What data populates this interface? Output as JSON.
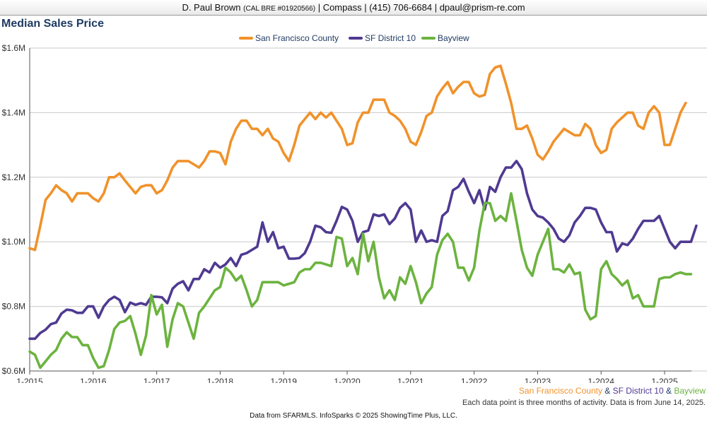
{
  "header": {
    "agent_name": "D. Paul Brown",
    "license": "(CAL BRE #01920566)",
    "rest": "| Compass | (415) 706-6684 | dpaul@prism-re.com"
  },
  "footer": {
    "attribution": {
      "sf": "San Francisco County",
      "amp1": " & ",
      "d10": "SF District 10",
      "amp2": " & ",
      "bay": "Bayview"
    },
    "note": "Each data point is three months of activity. Data is from June 14, 2025.",
    "source": "Data from SFARMLS. InfoSparks © 2025 ShowingTime Plus, LLC."
  },
  "chart_data": {
    "type": "line",
    "title": "Median Sales Price",
    "xlabel": "",
    "ylabel": "",
    "ylim": [
      600000,
      1600000
    ],
    "yticks": [
      600000,
      800000,
      1000000,
      1200000,
      1400000,
      1600000
    ],
    "ytick_labels": [
      "$0.6M",
      "$0.8M",
      "$1.0M",
      "$1.2M",
      "$1.4M",
      "$1.6M"
    ],
    "xticks": [
      "1-2015",
      "1-2016",
      "1-2017",
      "1-2018",
      "1-2019",
      "1-2020",
      "1-2021",
      "1-2022",
      "1-2023",
      "1-2024",
      "1-2025"
    ],
    "x_start": "2015-01",
    "grid": "horizontal",
    "legend_position": "top",
    "series": [
      {
        "name": "San Francisco County",
        "color": "#f0922b",
        "values": [
          980000,
          975000,
          1050000,
          1130000,
          1150000,
          1175000,
          1160000,
          1150000,
          1125000,
          1150000,
          1150000,
          1150000,
          1135000,
          1125000,
          1150000,
          1200000,
          1200000,
          1212000,
          1190000,
          1170000,
          1150000,
          1170000,
          1175000,
          1175000,
          1150000,
          1160000,
          1190000,
          1230000,
          1250000,
          1250000,
          1250000,
          1240000,
          1230000,
          1250000,
          1280000,
          1280000,
          1275000,
          1240000,
          1310000,
          1350000,
          1375000,
          1375000,
          1350000,
          1350000,
          1330000,
          1350000,
          1320000,
          1310000,
          1275000,
          1250000,
          1300000,
          1360000,
          1380000,
          1400000,
          1380000,
          1400000,
          1385000,
          1400000,
          1375000,
          1350000,
          1300000,
          1305000,
          1370000,
          1400000,
          1400000,
          1440000,
          1440000,
          1440000,
          1400000,
          1390000,
          1375000,
          1350000,
          1310000,
          1300000,
          1340000,
          1390000,
          1400000,
          1450000,
          1475000,
          1495000,
          1460000,
          1480000,
          1495000,
          1495000,
          1460000,
          1450000,
          1455000,
          1520000,
          1540000,
          1545000,
          1490000,
          1430000,
          1350000,
          1350000,
          1360000,
          1320000,
          1270000,
          1255000,
          1280000,
          1310000,
          1330000,
          1350000,
          1340000,
          1330000,
          1330000,
          1365000,
          1350000,
          1300000,
          1275000,
          1285000,
          1350000,
          1370000,
          1385000,
          1400000,
          1400000,
          1360000,
          1350000,
          1400000,
          1420000,
          1400000,
          1300000,
          1300000,
          1350000,
          1400000,
          1430000
        ]
      },
      {
        "name": "SF District 10",
        "color": "#4f3a91",
        "values": [
          700000,
          700000,
          718000,
          728000,
          745000,
          750000,
          778000,
          790000,
          788000,
          780000,
          780000,
          800000,
          800000,
          765000,
          800000,
          820000,
          830000,
          820000,
          782000,
          812000,
          805000,
          810000,
          805000,
          830000,
          830000,
          828000,
          810000,
          855000,
          870000,
          878000,
          850000,
          885000,
          885000,
          915000,
          905000,
          935000,
          920000,
          930000,
          950000,
          925000,
          960000,
          965000,
          975000,
          985000,
          1060000,
          1000000,
          1030000,
          980000,
          985000,
          948000,
          948000,
          950000,
          965000,
          1000000,
          1050000,
          1045000,
          1030000,
          1028000,
          1065000,
          1108000,
          1100000,
          1065000,
          1000000,
          1030000,
          1035000,
          1085000,
          1080000,
          1085000,
          1055000,
          1072000,
          1105000,
          1120000,
          1100000,
          1000000,
          1035000,
          1000000,
          1005000,
          1000000,
          1080000,
          1095000,
          1160000,
          1170000,
          1195000,
          1155000,
          1120000,
          1160000,
          1100000,
          1170000,
          1155000,
          1200000,
          1230000,
          1230000,
          1250000,
          1225000,
          1150000,
          1100000,
          1080000,
          1075000,
          1060000,
          1040000,
          1010000,
          1000000,
          1020000,
          1060000,
          1080000,
          1105000,
          1105000,
          1100000,
          1060000,
          1030000,
          1030000,
          970000,
          995000,
          990000,
          1010000,
          1040000,
          1065000,
          1065000,
          1065000,
          1080000,
          1040000,
          1000000,
          980000,
          1000000,
          1000000,
          1000000,
          1050000
        ]
      },
      {
        "name": "Bayview",
        "color": "#6cb33f",
        "values": [
          660000,
          650000,
          610000,
          630000,
          650000,
          665000,
          700000,
          720000,
          705000,
          705000,
          680000,
          680000,
          640000,
          610000,
          615000,
          665000,
          730000,
          750000,
          755000,
          770000,
          715000,
          650000,
          710000,
          835000,
          775000,
          805000,
          675000,
          760000,
          810000,
          800000,
          750000,
          700000,
          780000,
          800000,
          825000,
          850000,
          860000,
          920000,
          905000,
          880000,
          895000,
          850000,
          800000,
          820000,
          875000,
          875000,
          875000,
          875000,
          865000,
          870000,
          875000,
          905000,
          915000,
          915000,
          935000,
          935000,
          930000,
          925000,
          1015000,
          1010000,
          925000,
          950000,
          900000,
          1025000,
          940000,
          1000000,
          890000,
          825000,
          850000,
          820000,
          890000,
          870000,
          925000,
          875000,
          810000,
          840000,
          860000,
          960000,
          1005000,
          1025000,
          1000000,
          920000,
          920000,
          880000,
          920000,
          1035000,
          1120000,
          1120000,
          1065000,
          1080000,
          1065000,
          1150000,
          1065000,
          975000,
          920000,
          895000,
          960000,
          1000000,
          1040000,
          915000,
          915000,
          905000,
          930000,
          900000,
          905000,
          790000,
          760000,
          770000,
          915000,
          940000,
          900000,
          885000,
          865000,
          880000,
          825000,
          835000,
          800000,
          800000,
          800000,
          885000,
          890000,
          890000,
          900000,
          905000,
          900000,
          900000
        ]
      }
    ]
  }
}
